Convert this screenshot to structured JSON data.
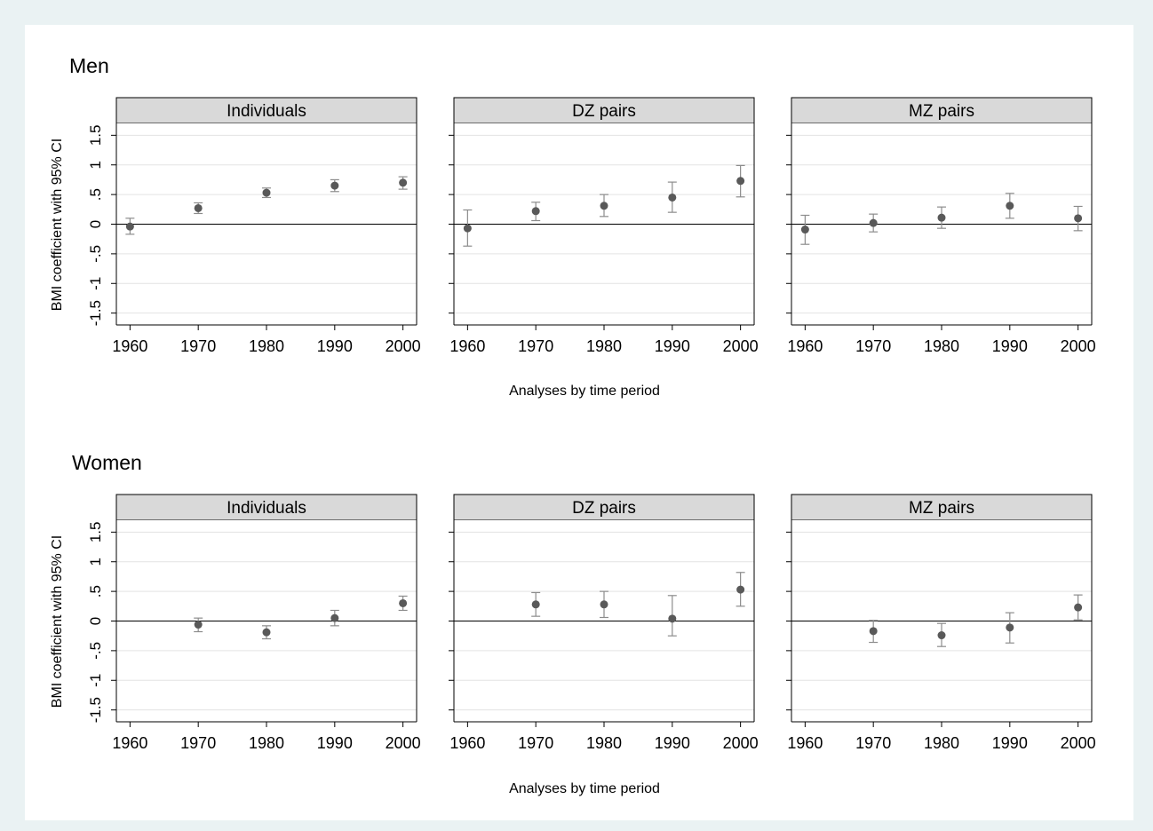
{
  "chart_data": [
    {
      "type": "scatter",
      "title": "Men",
      "ylabel": "BMI coefficient with 95% CI",
      "xlabel": "Analyses by time period",
      "x_ticks": [
        "1960",
        "1970",
        "1980",
        "1990",
        "2000"
      ],
      "y_ticks": [
        "-1.5",
        "-1",
        "-.5",
        "0",
        ".5",
        "1",
        "1.5"
      ],
      "y_tick_values": [
        -1.5,
        -1,
        -0.5,
        0,
        0.5,
        1,
        1.5
      ],
      "xlim": [
        1958,
        2002
      ],
      "ylim": [
        -1.7,
        1.7
      ],
      "grid": true,
      "facets": [
        {
          "label": "Individuals",
          "points": [
            {
              "x": 1960,
              "y": -0.04,
              "lo": -0.17,
              "hi": 0.1
            },
            {
              "x": 1970,
              "y": 0.27,
              "lo": 0.18,
              "hi": 0.36
            },
            {
              "x": 1980,
              "y": 0.53,
              "lo": 0.45,
              "hi": 0.61
            },
            {
              "x": 1990,
              "y": 0.65,
              "lo": 0.55,
              "hi": 0.75
            },
            {
              "x": 2000,
              "y": 0.7,
              "lo": 0.59,
              "hi": 0.8
            }
          ]
        },
        {
          "label": "DZ pairs",
          "points": [
            {
              "x": 1960,
              "y": -0.07,
              "lo": -0.37,
              "hi": 0.24
            },
            {
              "x": 1970,
              "y": 0.22,
              "lo": 0.06,
              "hi": 0.37
            },
            {
              "x": 1980,
              "y": 0.31,
              "lo": 0.13,
              "hi": 0.5
            },
            {
              "x": 1990,
              "y": 0.45,
              "lo": 0.2,
              "hi": 0.71
            },
            {
              "x": 2000,
              "y": 0.73,
              "lo": 0.46,
              "hi": 0.99
            }
          ]
        },
        {
          "label": "MZ pairs",
          "points": [
            {
              "x": 1960,
              "y": -0.09,
              "lo": -0.34,
              "hi": 0.15
            },
            {
              "x": 1970,
              "y": 0.02,
              "lo": -0.13,
              "hi": 0.17
            },
            {
              "x": 1980,
              "y": 0.11,
              "lo": -0.07,
              "hi": 0.29
            },
            {
              "x": 1990,
              "y": 0.31,
              "lo": 0.1,
              "hi": 0.52
            },
            {
              "x": 2000,
              "y": 0.1,
              "lo": -0.11,
              "hi": 0.3
            }
          ]
        }
      ]
    },
    {
      "type": "scatter",
      "title": "Women",
      "ylabel": "BMI coefficient with 95% CI",
      "xlabel": "Analyses by time period",
      "x_ticks": [
        "1960",
        "1970",
        "1980",
        "1990",
        "2000"
      ],
      "y_ticks": [
        "-1.5",
        "-1",
        "-.5",
        "0",
        ".5",
        "1",
        "1.5"
      ],
      "y_tick_values": [
        -1.5,
        -1,
        -0.5,
        0,
        0.5,
        1,
        1.5
      ],
      "xlim": [
        1958,
        2002
      ],
      "ylim": [
        -1.7,
        1.7
      ],
      "grid": true,
      "facets": [
        {
          "label": "Individuals",
          "points": [
            {
              "x": 1970,
              "y": -0.06,
              "lo": -0.18,
              "hi": 0.05
            },
            {
              "x": 1980,
              "y": -0.19,
              "lo": -0.3,
              "hi": -0.08
            },
            {
              "x": 1990,
              "y": 0.05,
              "lo": -0.08,
              "hi": 0.18
            },
            {
              "x": 2000,
              "y": 0.3,
              "lo": 0.18,
              "hi": 0.42
            }
          ]
        },
        {
          "label": "DZ pairs",
          "points": [
            {
              "x": 1970,
              "y": 0.28,
              "lo": 0.08,
              "hi": 0.48
            },
            {
              "x": 1980,
              "y": 0.28,
              "lo": 0.06,
              "hi": 0.5
            },
            {
              "x": 1990,
              "y": 0.04,
              "lo": -0.25,
              "hi": 0.43
            },
            {
              "x": 2000,
              "y": 0.53,
              "lo": 0.25,
              "hi": 0.82
            }
          ]
        },
        {
          "label": "MZ pairs",
          "points": [
            {
              "x": 1970,
              "y": -0.17,
              "lo": -0.36,
              "hi": 0.01
            },
            {
              "x": 1980,
              "y": -0.24,
              "lo": -0.43,
              "hi": -0.04
            },
            {
              "x": 1990,
              "y": -0.11,
              "lo": -0.37,
              "hi": 0.14
            },
            {
              "x": 2000,
              "y": 0.23,
              "lo": 0.02,
              "hi": 0.44
            }
          ]
        }
      ]
    }
  ],
  "colors": {
    "outer_background": "#eaf2f3",
    "plot_background": "#ffffff",
    "strip_fill": "#d9d9d9",
    "gridline": "#e3e3e3",
    "marker": "#595959",
    "ci_bar": "#8c8c8c",
    "reference_line": "#000000"
  }
}
